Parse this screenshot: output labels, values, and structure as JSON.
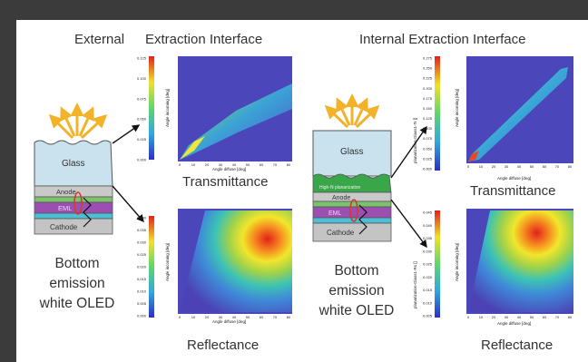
{
  "left_panel": {
    "title_external": "External",
    "title_interface": "Extraction Interface",
    "transmittance_label": "Transmittance",
    "reflectance_label": "Reflectance",
    "caption_line1": "Bottom",
    "caption_line2": "emission",
    "caption_line3": "white OLED",
    "stack": {
      "glass": "Glass",
      "anode": "Anode",
      "eml": "EML",
      "cathode": "Cathode"
    },
    "trans_plot": {
      "xlabel": "Angle diffuse [deg]",
      "ylabel": "Angle incoming [deg]",
      "colorbar_ticks": [
        "0.125",
        "0.100",
        "0.075",
        "0.050",
        "0.025",
        "0.000"
      ]
    },
    "refl_plot": {
      "xlabel": "Angle diffuse [deg]",
      "ylabel": "Angle incoming [deg]",
      "colorbar_ticks": [
        "0.040",
        "0.035",
        "0.030",
        "0.025",
        "0.020",
        "0.015",
        "0.010",
        "0.005",
        "0.000"
      ]
    }
  },
  "right_panel": {
    "title": "Internal Extraction Interface",
    "transmittance_label": "Transmittance",
    "reflectance_label": "Reflectance",
    "caption_line1": "Bottom",
    "caption_line2": "emission",
    "caption_line3": "white OLED",
    "stack": {
      "glass": "Glass",
      "highn": "High-N planarization",
      "anode": "Anode",
      "eml": "EML",
      "cathode": "Cathode"
    },
    "trans_plot": {
      "xlabel": "Angle diffuse [deg]",
      "ylabel": "Angle incoming [deg]",
      "cbar_label": "planarization-Glass1-Tr []",
      "colorbar_ticks": [
        "0.275",
        "0.250",
        "0.225",
        "0.200",
        "0.175",
        "0.150",
        "0.125",
        "0.100",
        "0.075",
        "0.050",
        "0.025",
        "0.000"
      ]
    },
    "refl_plot": {
      "xlabel": "Angle diffuse [deg]",
      "ylabel": "Angle incoming [deg]",
      "cbar_label": "planarization-Glass1-Rs []",
      "colorbar_ticks": [
        "0.045",
        "0.040",
        "0.035",
        "0.030",
        "0.025",
        "0.020",
        "0.015",
        "0.010",
        "0.005"
      ]
    }
  },
  "axis_ticks": [
    "0",
    "10",
    "20",
    "30",
    "40",
    "50",
    "60",
    "70",
    "80"
  ],
  "colors": {
    "background": "#3b3b3b",
    "glass": "#c9e2ee",
    "anode": "#c9c9c9",
    "green_layer": "#7cc26b",
    "eml": "#9b4fb0",
    "cyan_layer": "#4bbfd6",
    "cathode": "#c4c4c4",
    "high_n": "#3aa64a",
    "arrow": "#f2b22a"
  }
}
